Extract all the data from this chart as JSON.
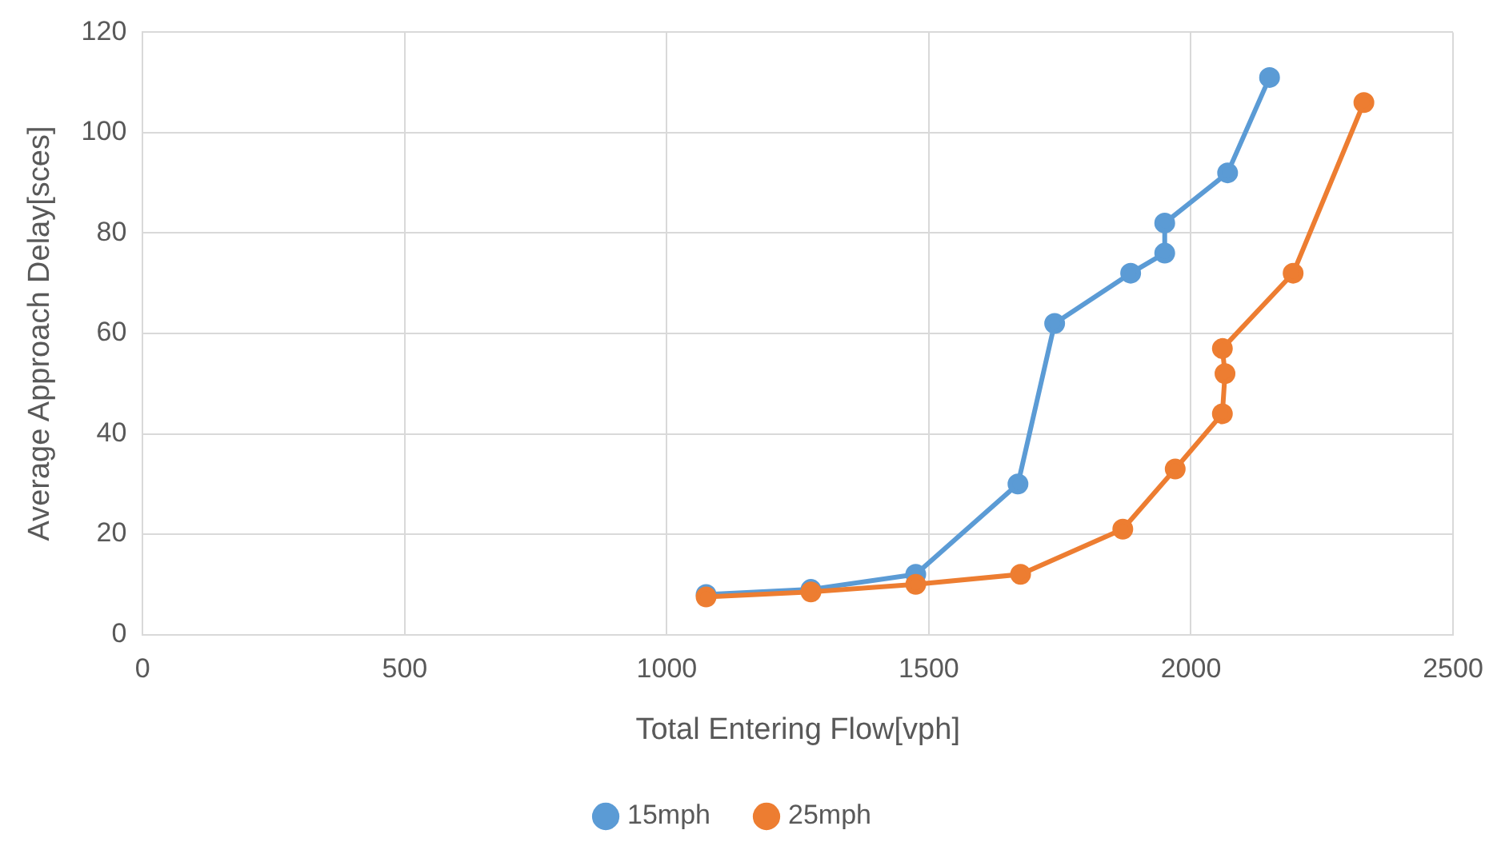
{
  "chart_data": {
    "type": "line",
    "xlabel": "Total Entering Flow[vph]",
    "ylabel": "Average Approach Delay[sces]",
    "xlim": [
      0,
      2500
    ],
    "xticks": [
      0,
      500,
      1000,
      1500,
      2000,
      2500
    ],
    "ylim": [
      0,
      120
    ],
    "yticks": [
      0,
      20,
      40,
      60,
      80,
      100,
      120
    ],
    "grid": true,
    "legend": "bottom",
    "marker": "circle",
    "line_style": "solid",
    "series": [
      {
        "name": "15mph",
        "color": "#5b9bd5",
        "x": [
          1075,
          1275,
          1475,
          1670,
          1740,
          1885,
          1950,
          1950,
          2070,
          2150
        ],
        "values": [
          8,
          9,
          12,
          30,
          62,
          72,
          76,
          82,
          92,
          111
        ]
      },
      {
        "name": "25mph",
        "color": "#ed7d31",
        "x": [
          1075,
          1275,
          1475,
          1675,
          1870,
          1970,
          2060,
          2065,
          2060,
          2195,
          2330
        ],
        "values": [
          7.5,
          8.5,
          10,
          12,
          21,
          33,
          44,
          52,
          57,
          72,
          106
        ]
      }
    ]
  }
}
